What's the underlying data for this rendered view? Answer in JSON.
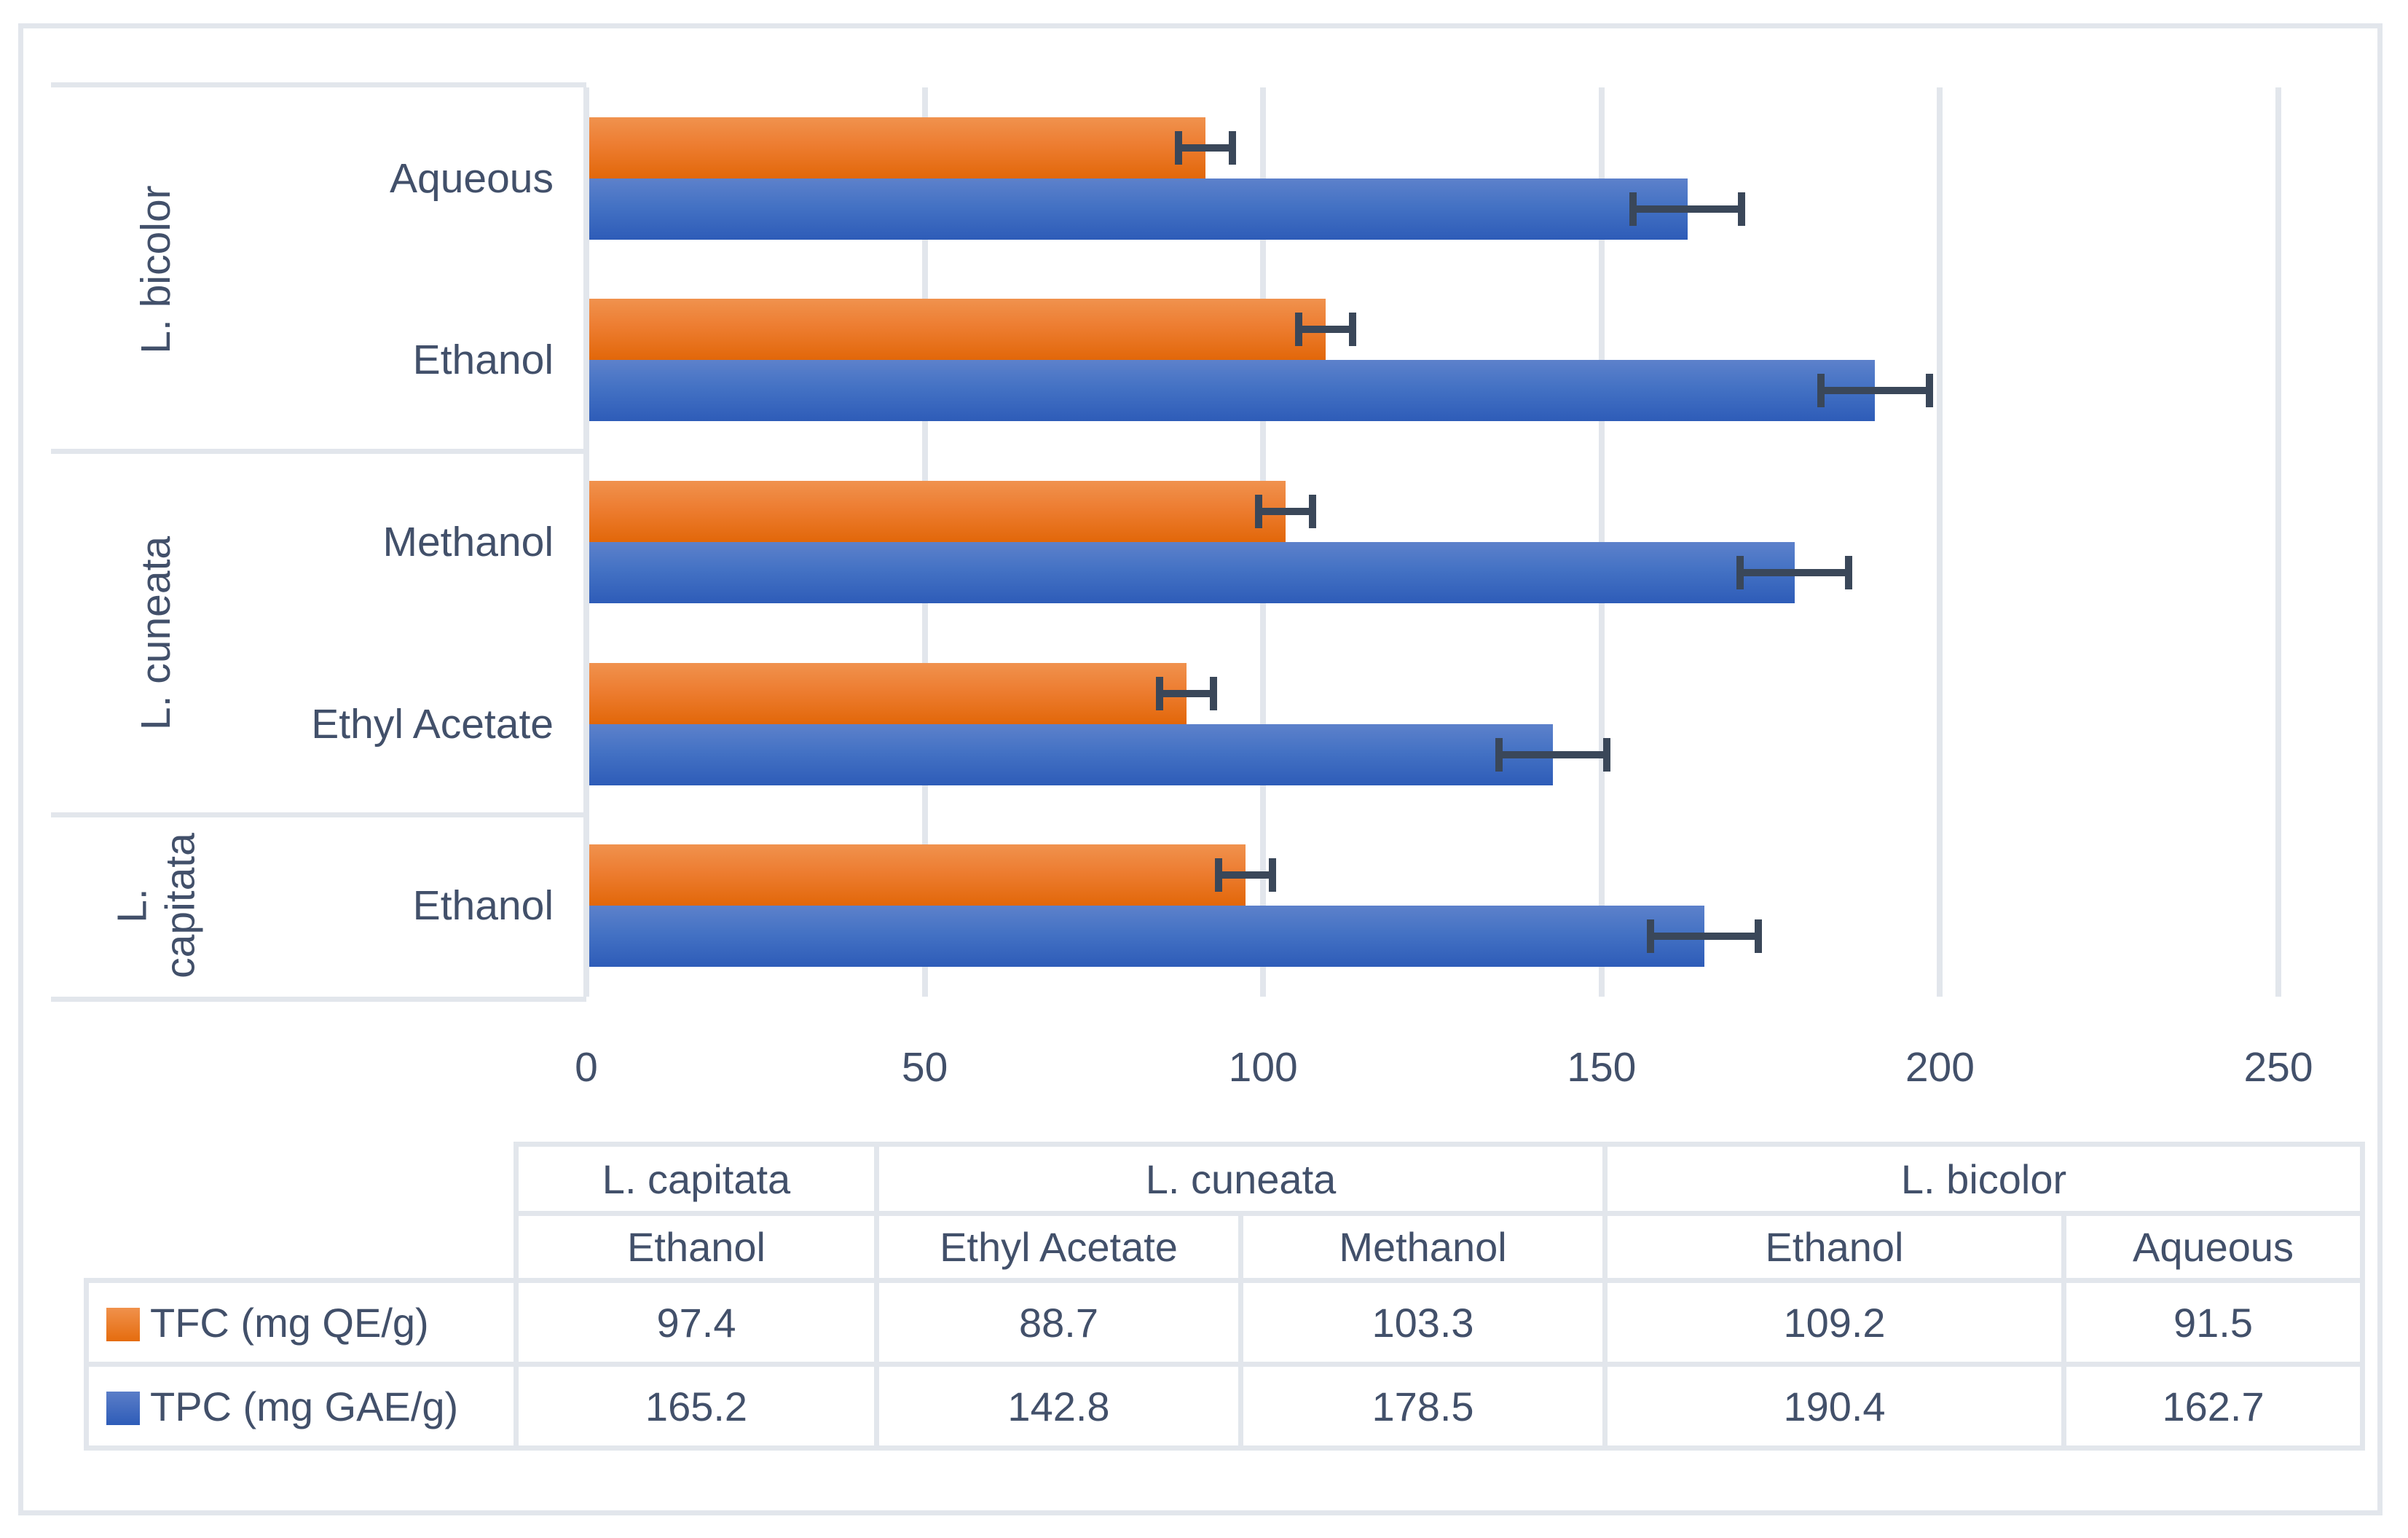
{
  "chart_data": {
    "type": "bar",
    "orientation": "horizontal",
    "title": "",
    "xlabel": "",
    "ylabel": "",
    "xlim": [
      0,
      250
    ],
    "x_ticks": [
      0,
      50,
      100,
      150,
      200,
      250
    ],
    "grid": "vertical",
    "legend_position": "left-of-table",
    "series": [
      {
        "name": "TFC (mg QE/g)",
        "color": "#ED7D31"
      },
      {
        "name": "TPC (mg GAE/g)",
        "color": "#4472C4"
      }
    ],
    "rows": [
      {
        "group": "L. bicolor",
        "solvent": "Aqueous",
        "tfc": 91.5,
        "tfc_err": 4,
        "tpc": 162.7,
        "tpc_err": 8
      },
      {
        "group": "L. bicolor",
        "solvent": "Ethanol",
        "tfc": 109.2,
        "tfc_err": 4,
        "tpc": 190.4,
        "tpc_err": 8
      },
      {
        "group": "L. cuneata",
        "solvent": "Methanol",
        "tfc": 103.3,
        "tfc_err": 4,
        "tpc": 178.5,
        "tpc_err": 8
      },
      {
        "group": "L. cuneata",
        "solvent": "Ethyl Acetate",
        "tfc": 88.7,
        "tfc_err": 4,
        "tpc": 142.8,
        "tpc_err": 8
      },
      {
        "group": "L. capitata",
        "solvent": "Ethanol",
        "tfc": 97.4,
        "tfc_err": 4,
        "tpc": 165.2,
        "tpc_err": 8
      }
    ],
    "groups": [
      {
        "name": "L. bicolor",
        "row_count": 2
      },
      {
        "name": "L. cuneata",
        "row_count": 2
      },
      {
        "name": "L. capitata",
        "row_count": 1
      }
    ]
  },
  "table": {
    "species_headers": [
      {
        "label": "L. capitata",
        "span": 1
      },
      {
        "label": "L. cuneata",
        "span": 2
      },
      {
        "label": "L. bicolor",
        "span": 2
      }
    ],
    "solvent_headers": [
      "Ethanol",
      "Ethyl Acetate",
      "Methanol",
      "Ethanol",
      "Aqueous"
    ],
    "rows": [
      {
        "label": "TFC (mg QE/g)",
        "swatch": "orange",
        "values": [
          "97.4",
          "88.7",
          "103.3",
          "109.2",
          "91.5"
        ]
      },
      {
        "label": "TPC (mg GAE/g)",
        "swatch": "blue",
        "values": [
          "165.2",
          "142.8",
          "178.5",
          "190.4",
          "162.7"
        ]
      }
    ]
  },
  "colors": {
    "text": "#42506A",
    "gridline": "#E2E6EC",
    "frame_border": "#E2E6EC",
    "bar_orange": "#ED7D31",
    "bar_blue": "#4472C4",
    "error_bar": "#3A4759"
  }
}
